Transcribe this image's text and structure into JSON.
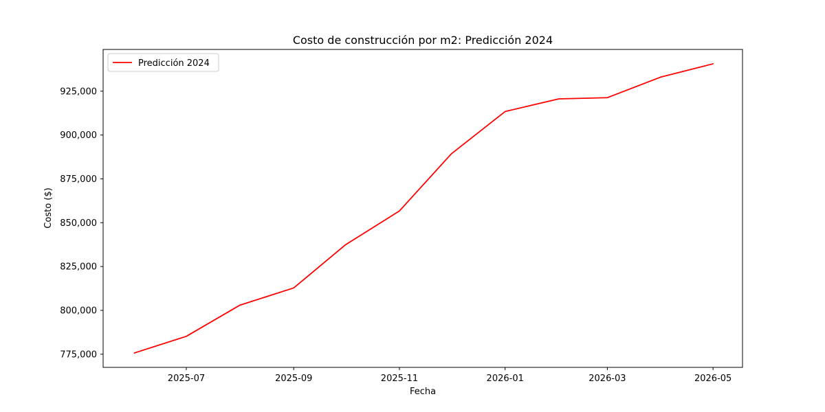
{
  "chart_data": {
    "type": "line",
    "title": "Costo de construcción por m2: Predicción 2024",
    "xlabel": "Fecha",
    "ylabel": "Costo ($)",
    "x": [
      "2025-06-01",
      "2025-07-01",
      "2025-08-01",
      "2025-09-01",
      "2025-10-01",
      "2025-11-01",
      "2025-12-01",
      "2026-01-01",
      "2026-02-01",
      "2026-03-01",
      "2026-04-01",
      "2026-05-01"
    ],
    "series": [
      {
        "name": "Predicción 2024",
        "values": [
          775700,
          785200,
          803000,
          812800,
          837500,
          856700,
          889300,
          913400,
          920600,
          921300,
          933100,
          940600
        ],
        "color": "#ff0000"
      }
    ],
    "xticks": [
      "2025-07",
      "2025-09",
      "2025-11",
      "2026-01",
      "2026-03",
      "2026-05"
    ],
    "xtick_dates": [
      "2025-07-01",
      "2025-09-01",
      "2025-11-01",
      "2026-01-01",
      "2026-03-01",
      "2026-05-01"
    ],
    "yticks": [
      775000,
      800000,
      825000,
      850000,
      875000,
      900000,
      925000
    ],
    "ytick_labels": [
      "775,000",
      "800,000",
      "825,000",
      "850,000",
      "875,000",
      "900,000",
      "925,000"
    ],
    "xlim": [
      "2025-05-14",
      "2026-05-18"
    ],
    "ylim": [
      767500,
      948800
    ],
    "grid": false,
    "legend_position": "top-left"
  }
}
